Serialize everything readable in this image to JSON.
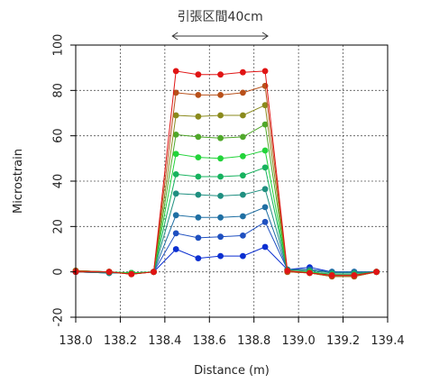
{
  "chart_data": {
    "type": "line",
    "title": "",
    "xlabel": "Distance (m)",
    "ylabel": "Microstrain",
    "xlim": [
      138.0,
      139.4
    ],
    "ylim": [
      -20,
      100
    ],
    "xticks": [
      "138.0",
      "138.2",
      "138.4",
      "138.6",
      "138.8",
      "139.0",
      "139.2",
      "139.4"
    ],
    "yticks": [
      "-20",
      "0",
      "20",
      "40",
      "60",
      "80",
      "100"
    ],
    "grid": true,
    "annotation": {
      "text": "引張区間40cm",
      "x_from": 138.45,
      "x_to": 138.85
    },
    "x": [
      138.0,
      138.15,
      138.25,
      138.35,
      138.45,
      138.55,
      138.65,
      138.75,
      138.85,
      138.95,
      139.05,
      139.15,
      139.25,
      139.35
    ],
    "series": [
      {
        "color": "#0b2fd1",
        "values": [
          0,
          -0.5,
          -0.5,
          0,
          10,
          6,
          7,
          7,
          11,
          1,
          2,
          0,
          0,
          0
        ]
      },
      {
        "color": "#1f50c0",
        "values": [
          0,
          -0.5,
          -0.5,
          0,
          17,
          15,
          15.5,
          16,
          22,
          1,
          1,
          0,
          0,
          0
        ]
      },
      {
        "color": "#1f6fa3",
        "values": [
          0,
          -0.5,
          -0.5,
          0,
          25,
          24,
          24,
          24.5,
          28.5,
          1,
          1,
          0,
          0,
          0
        ]
      },
      {
        "color": "#1f8f80",
        "values": [
          0,
          -0.5,
          -0.5,
          0,
          34.5,
          34,
          33.5,
          34,
          36.5,
          1,
          0.5,
          -0.5,
          -0.5,
          0
        ]
      },
      {
        "color": "#16b25e",
        "values": [
          0.5,
          0,
          -0.5,
          0,
          43,
          42,
          42,
          42.5,
          46,
          0.5,
          0,
          -1,
          -1,
          0
        ]
      },
      {
        "color": "#22d43a",
        "values": [
          0.5,
          0,
          -0.5,
          0,
          52,
          50.5,
          50,
          51,
          53.5,
          0.5,
          0,
          -1.5,
          -1.5,
          0
        ]
      },
      {
        "color": "#4fa82a",
        "values": [
          0.5,
          0,
          -1,
          0,
          60.5,
          59.5,
          59,
          59.5,
          65,
          0,
          -0.5,
          -2,
          -2,
          0
        ]
      },
      {
        "color": "#8a8a1c",
        "values": [
          0.5,
          0,
          -1,
          0,
          69,
          68.5,
          69,
          69,
          73.5,
          0,
          -0.5,
          -2,
          -2,
          0
        ]
      },
      {
        "color": "#b8501a",
        "values": [
          0.5,
          0,
          -1,
          0,
          79,
          78,
          78,
          79,
          82,
          0,
          -0.5,
          -2,
          -2,
          0
        ]
      },
      {
        "color": "#e01414",
        "values": [
          0,
          0,
          -1,
          0,
          88.5,
          87,
          87,
          88,
          88.5,
          0.5,
          -0.5,
          -1.5,
          -1.5,
          0
        ]
      }
    ]
  }
}
